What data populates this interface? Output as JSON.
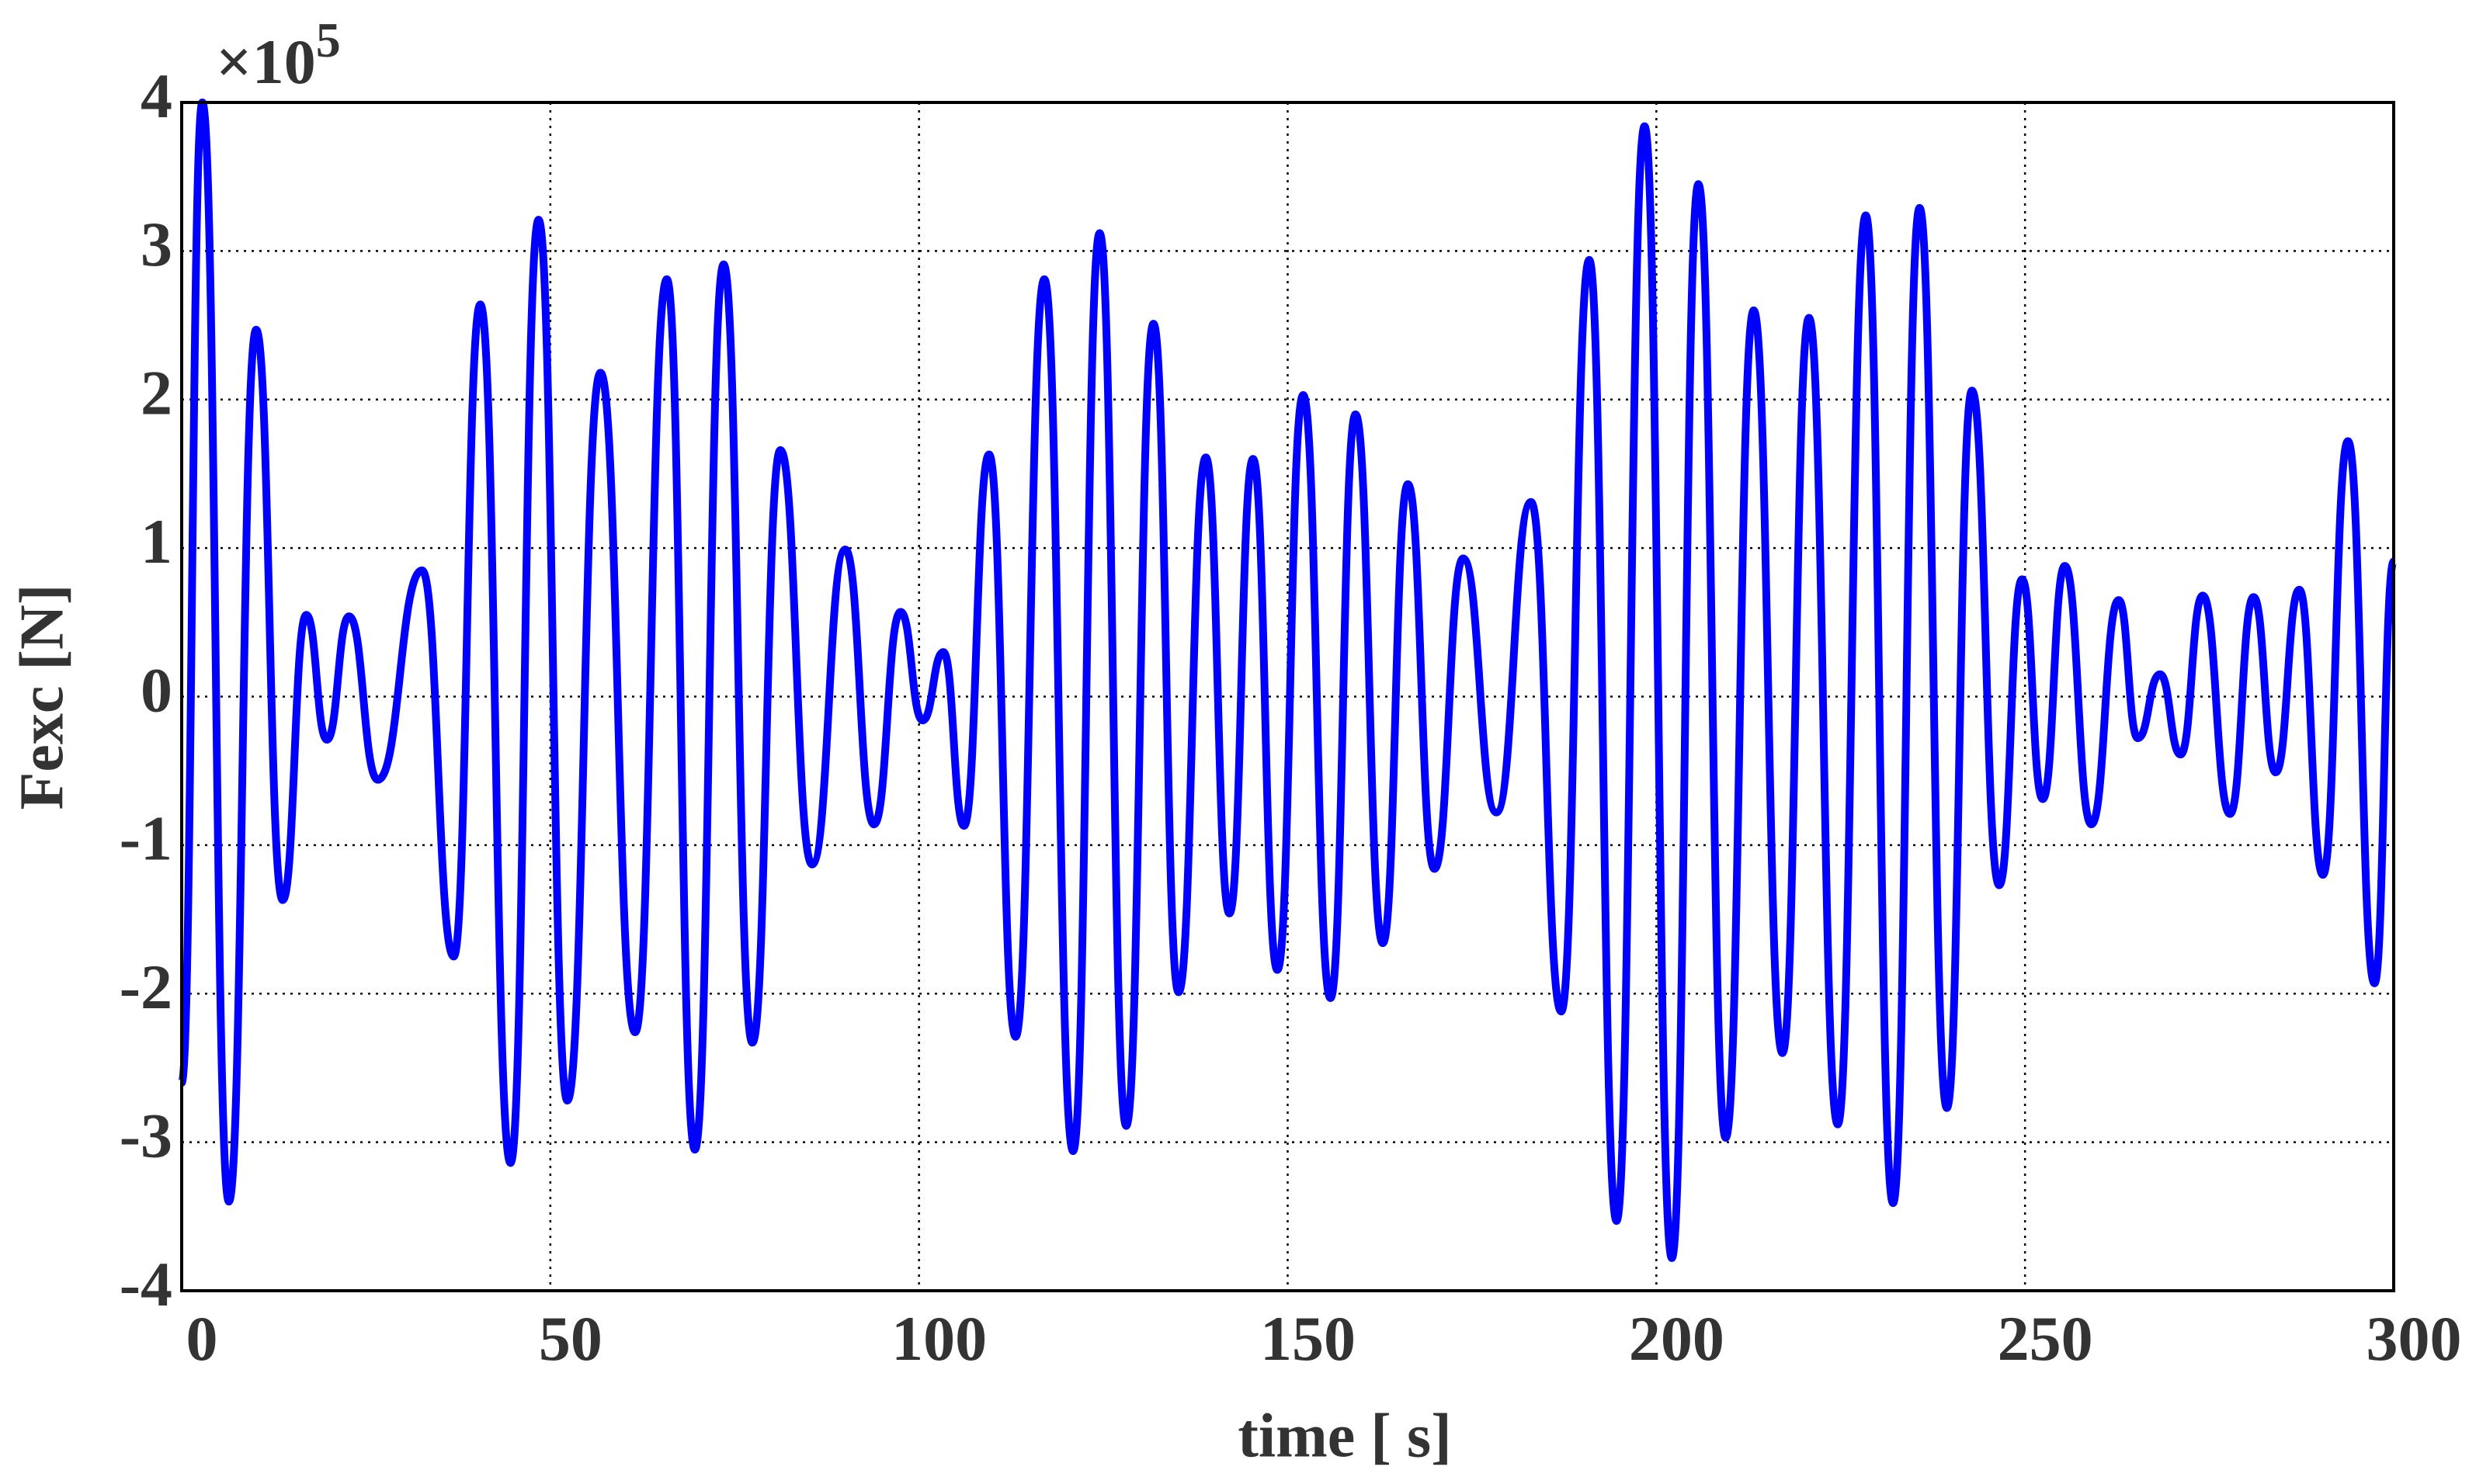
{
  "chart_data": {
    "type": "line",
    "xlabel": "time [ s]",
    "ylabel": "Fexc [N]",
    "y_multiplier_base": "×10",
    "y_multiplier_exponent": "5",
    "xlim": [
      0,
      300
    ],
    "xticks": [
      0,
      50,
      100,
      150,
      200,
      250,
      300
    ],
    "ylim": [
      -4,
      4
    ],
    "yticks": [
      -4,
      -3,
      -2,
      -1,
      0,
      1,
      2,
      3,
      4
    ],
    "grid": true,
    "x": [
      0,
      2.8,
      6.4,
      10.1,
      13.7,
      16.9,
      19.7,
      22.7,
      26.6,
      32.6,
      36.9,
      40.5,
      44.6,
      48.4,
      52.3,
      56.8,
      61.5,
      65.8,
      69.6,
      73.5,
      77.4,
      81.2,
      85.5,
      90.0,
      93.9,
      97.5,
      100.5,
      103.3,
      106.1,
      109.5,
      113.1,
      117.0,
      120.9,
      124.5,
      128.1,
      131.8,
      135.2,
      138.9,
      142.1,
      145.3,
      148.6,
      152.1,
      155.8,
      159.2,
      162.9,
      166.3,
      169.9,
      173.8,
      178.3,
      183.0,
      187.1,
      190.9,
      194.6,
      198.4,
      202.1,
      205.7,
      209.4,
      213.2,
      217.1,
      220.7,
      224.6,
      228.4,
      232.1,
      235.7,
      239.4,
      242.8,
      246.5,
      249.6,
      252.4,
      255.4,
      259.0,
      262.7,
      265.3,
      268.3,
      271.1,
      274.1,
      277.8,
      281.0,
      284.0,
      287.2,
      290.4,
      293.8,
      297.4,
      300
    ],
    "series": [
      {
        "name": "Fexc",
        "color": "#0000ff",
        "values": [
          -2.6,
          4.0,
          -3.4,
          2.47,
          -1.37,
          0.55,
          -0.29,
          0.54,
          -0.56,
          0.85,
          -1.75,
          2.64,
          -3.14,
          3.21,
          -2.72,
          2.18,
          -2.26,
          2.81,
          -3.05,
          2.91,
          -2.33,
          1.66,
          -1.13,
          0.99,
          -0.86,
          0.57,
          -0.16,
          0.3,
          -0.87,
          1.63,
          -2.29,
          2.81,
          -3.06,
          3.12,
          -2.89,
          2.51,
          -1.99,
          1.61,
          -1.46,
          1.6,
          -1.84,
          2.03,
          -2.03,
          1.9,
          -1.66,
          1.43,
          -1.16,
          0.93,
          -0.78,
          1.31,
          -2.12,
          2.94,
          -3.53,
          3.84,
          -3.78,
          3.45,
          -2.97,
          2.6,
          -2.4,
          2.55,
          -2.88,
          3.24,
          -3.41,
          3.29,
          -2.77,
          2.06,
          -1.27,
          0.79,
          -0.69,
          0.88,
          -0.86,
          0.65,
          -0.28,
          0.15,
          -0.39,
          0.68,
          -0.79,
          0.67,
          -0.51,
          0.72,
          -1.2,
          1.72,
          -1.93,
          0.91
        ]
      }
    ]
  }
}
